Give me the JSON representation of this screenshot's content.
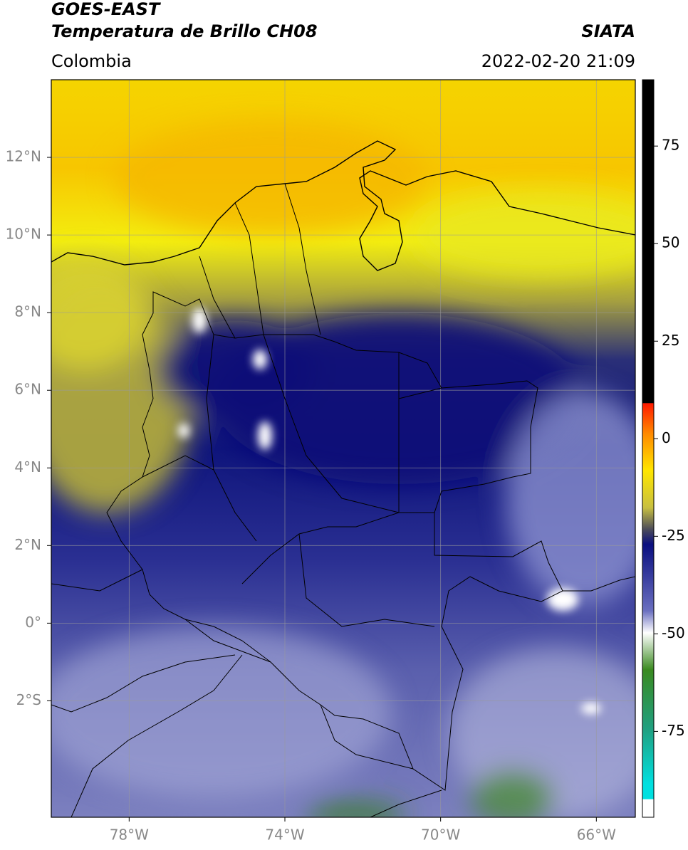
{
  "header": {
    "title_line1": "GOES-EAST",
    "title_line2": "Temperatura de Brillo CH08",
    "source": "SIATA",
    "region": "Colombia",
    "timestamp": "2022-02-20 21:09"
  },
  "map": {
    "lon_range": [
      -80,
      -65
    ],
    "lat_range": [
      -5,
      14
    ],
    "lon_ticks": [
      {
        "value": -78,
        "label": "78°W"
      },
      {
        "value": -74,
        "label": "74°W"
      },
      {
        "value": -70,
        "label": "70°W"
      },
      {
        "value": -66,
        "label": "66°W"
      }
    ],
    "lat_ticks": [
      {
        "value": 12,
        "label": "12°N"
      },
      {
        "value": 10,
        "label": "10°N"
      },
      {
        "value": 8,
        "label": "8°N"
      },
      {
        "value": 6,
        "label": "6°N"
      },
      {
        "value": 4,
        "label": "4°N"
      },
      {
        "value": 2,
        "label": "2°N"
      },
      {
        "value": 0,
        "label": "0°"
      },
      {
        "value": -2,
        "label": "2°S"
      }
    ]
  },
  "colorbar": {
    "range": [
      -97,
      92
    ],
    "ticks": [
      75,
      50,
      25,
      0,
      -25,
      -50,
      -75
    ]
  }
}
